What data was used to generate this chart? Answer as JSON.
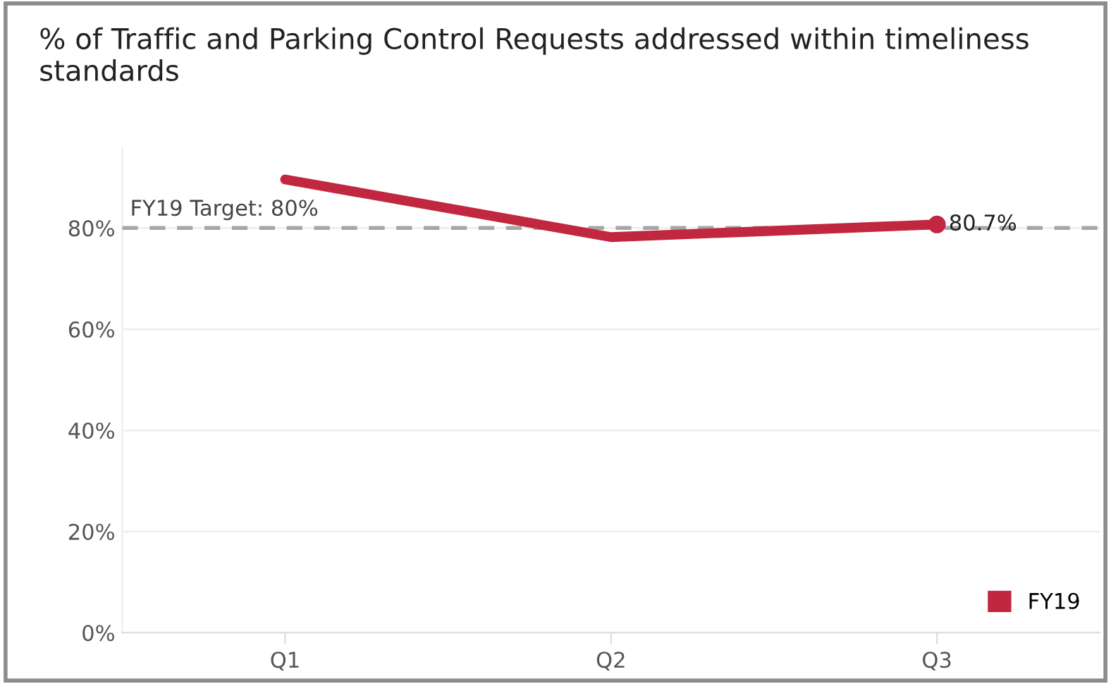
{
  "chart_data": {
    "type": "line",
    "title": "% of Traffic and Parking Control Requests addressed within timeliness standards",
    "categories": [
      "Q1",
      "Q2",
      "Q3"
    ],
    "series": [
      {
        "name": "FY19",
        "color": "#c1273f",
        "values": [
          89.6,
          78.2,
          80.7
        ],
        "value_labels": [
          null,
          null,
          "80.7%"
        ]
      }
    ],
    "ylim": [
      0,
      96
    ],
    "yticks": [
      {
        "value": 0,
        "label": "0%"
      },
      {
        "value": 20,
        "label": "20%"
      },
      {
        "value": 40,
        "label": "40%"
      },
      {
        "value": 60,
        "label": "60%"
      },
      {
        "value": 80,
        "label": "80%"
      }
    ],
    "ref_lines": [
      {
        "axis": "y",
        "value": 80,
        "label": "FY19 Target: 80%",
        "color": "#a6a6a6",
        "line_style": "dashed"
      }
    ],
    "grid": "y",
    "legend": "bottom right"
  }
}
